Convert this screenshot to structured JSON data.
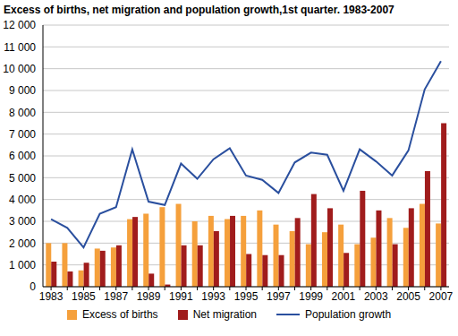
{
  "chart_data": {
    "type": "bar",
    "title": "Excess of births, net migration and population growth,1st quarter. 1983-2007",
    "categories": [
      "1983",
      null,
      "1985",
      null,
      "1987",
      null,
      "1989",
      null,
      "1991",
      null,
      "1993",
      null,
      "1995",
      null,
      "1997",
      null,
      "1999",
      null,
      "2001",
      null,
      "2003",
      null,
      "2005",
      null,
      "2007"
    ],
    "series": [
      {
        "name": "Excess of births",
        "type": "bar",
        "color": "#f5a03c",
        "values": [
          2000,
          2000,
          750,
          1750,
          1800,
          3100,
          3350,
          3650,
          3800,
          3000,
          3250,
          3100,
          3250,
          3500,
          2850,
          2550,
          1950,
          2500,
          2850,
          1950,
          2250,
          3150,
          2700,
          3800,
          2900
        ]
      },
      {
        "name": "Net migration",
        "type": "bar",
        "color": "#a01c1c",
        "values": [
          1150,
          700,
          1100,
          1650,
          1900,
          3200,
          600,
          100,
          1900,
          1900,
          2550,
          3250,
          1500,
          1450,
          1450,
          3150,
          4250,
          3600,
          1550,
          4400,
          3500,
          1950,
          3600,
          5300,
          7500
        ]
      },
      {
        "name": "Population growth",
        "type": "line",
        "color": "#2a4f9e",
        "values": [
          3100,
          2700,
          1800,
          3350,
          3650,
          6300,
          3900,
          3750,
          5650,
          4950,
          5850,
          6350,
          5100,
          4900,
          4300,
          5700,
          6150,
          6050,
          4400,
          6300,
          5750,
          5100,
          6250,
          9050,
          10350
        ]
      }
    ],
    "ylim": [
      0,
      12000
    ],
    "yticks": [
      0,
      {
        "value": 1000,
        "label": "1 000"
      },
      {
        "value": 2000,
        "label": "2 000"
      },
      {
        "value": 3000,
        "label": "3 000"
      },
      {
        "value": 4000,
        "label": "4 000"
      },
      {
        "value": 5000,
        "label": "5 000"
      },
      {
        "value": 6000,
        "label": "6 000"
      },
      {
        "value": 7000,
        "label": "7 000"
      },
      {
        "value": 8000,
        "label": "8 000"
      },
      {
        "value": 9000,
        "label": "9 000"
      },
      {
        "value": 10000,
        "label": "10 000"
      },
      {
        "value": 11000,
        "label": "11 000"
      },
      {
        "value": 12000,
        "label": "12 000"
      }
    ],
    "grid": true,
    "legend": "bottom"
  }
}
